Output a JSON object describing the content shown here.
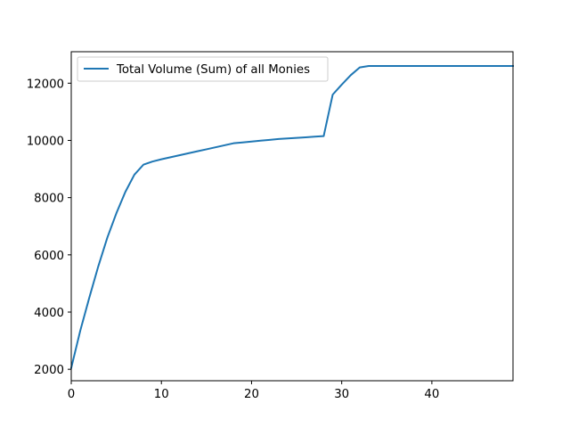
{
  "chart_data": {
    "type": "line",
    "title": "",
    "xlabel": "",
    "ylabel": "",
    "xlim": [
      0,
      49
    ],
    "ylim": [
      1600,
      13100
    ],
    "x_ticks": [
      0,
      10,
      20,
      30,
      40
    ],
    "y_ticks": [
      2000,
      4000,
      6000,
      8000,
      10000,
      12000
    ],
    "x_tick_labels": [
      "0",
      "10",
      "20",
      "30",
      "40"
    ],
    "y_tick_labels": [
      "2000",
      "4000",
      "6000",
      "8000",
      "10000",
      "12000"
    ],
    "grid": false,
    "legend": {
      "position": "top-left",
      "entries": [
        "Total Volume (Sum) of all Monies"
      ]
    },
    "series": [
      {
        "name": "Total Volume (Sum) of all Monies",
        "color": "#1f77b4",
        "x": [
          0,
          1,
          2,
          3,
          4,
          5,
          6,
          7,
          8,
          9,
          10,
          11,
          12,
          13,
          14,
          15,
          16,
          17,
          18,
          19,
          20,
          21,
          22,
          23,
          24,
          25,
          26,
          27,
          28,
          29,
          30,
          31,
          32,
          33,
          34,
          35,
          36,
          37,
          38,
          39,
          40,
          41,
          42,
          43,
          44,
          45,
          46,
          47,
          48,
          49
        ],
        "values": [
          2050,
          3350,
          4500,
          5600,
          6600,
          7450,
          8200,
          8800,
          9150,
          9260,
          9340,
          9410,
          9480,
          9550,
          9620,
          9690,
          9760,
          9830,
          9900,
          9930,
          9960,
          9990,
          10020,
          10050,
          10070,
          10090,
          10110,
          10130,
          10150,
          11600,
          11950,
          12280,
          12550,
          12600,
          12600,
          12600,
          12600,
          12600,
          12600,
          12600,
          12600,
          12600,
          12600,
          12600,
          12600,
          12600,
          12600,
          12600,
          12600,
          12600
        ]
      }
    ]
  }
}
